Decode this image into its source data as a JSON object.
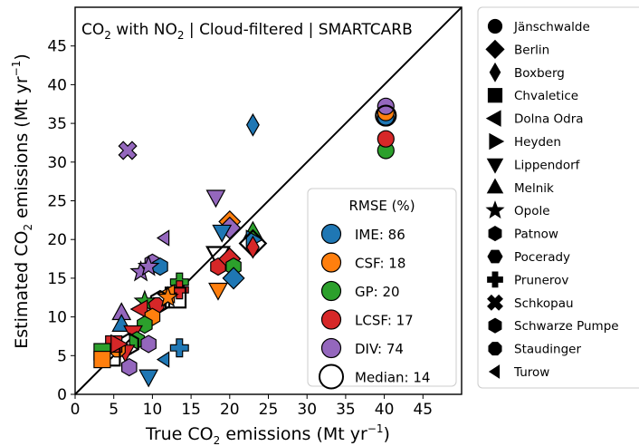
{
  "chart_data": {
    "type": "scatter",
    "title_text": "CO",
    "title_sub": "2",
    "title_mid": " with NO",
    "title_sub2": "2",
    "title_rest": " | Cloud-filtered | SMARTCARB",
    "xlabel_main": "True CO",
    "xlabel_sub": "2",
    "xlabel_rest": " emissions (Mt yr",
    "xlabel_sup": "−1",
    "xlabel_end": ")",
    "ylabel_main": "Estimated CO",
    "ylabel_sub": "2",
    "ylabel_rest": " emissions (Mt yr",
    "ylabel_sup": "−1",
    "ylabel_end": ")",
    "xlim": [
      0,
      50
    ],
    "ylim": [
      0,
      50
    ],
    "xticks": [
      "0",
      "5",
      "10",
      "15",
      "20",
      "25",
      "30",
      "35",
      "40",
      "45"
    ],
    "yticks": [
      "0",
      "5",
      "10",
      "15",
      "20",
      "25",
      "30",
      "35",
      "40",
      "45"
    ],
    "one_to_one_line": true,
    "method_legend_title": "RMSE (%)",
    "methods": [
      {
        "name": "IME: 86",
        "color": "#1f77b4"
      },
      {
        "name": "CSF: 18",
        "color": "#ff7f0e"
      },
      {
        "name": "GP: 20",
        "color": "#2ca02c"
      },
      {
        "name": "LCSF: 17",
        "color": "#d62728"
      },
      {
        "name": "DIV: 74",
        "color": "#9467bd"
      },
      {
        "name": "Median: 14",
        "color": "#ffffff"
      }
    ],
    "plants": [
      {
        "name": "Jänschwalde",
        "marker": "circle"
      },
      {
        "name": "Berlin",
        "marker": "diamond"
      },
      {
        "name": "Boxberg",
        "marker": "thin_diamond"
      },
      {
        "name": "Chvaletice",
        "marker": "square"
      },
      {
        "name": "Dolna Odra",
        "marker": "triangle_left"
      },
      {
        "name": "Heyden",
        "marker": "triangle_right"
      },
      {
        "name": "Lippendorf",
        "marker": "triangle_down"
      },
      {
        "name": "Melnik",
        "marker": "triangle_up"
      },
      {
        "name": "Opole",
        "marker": "star"
      },
      {
        "name": "Patnow",
        "marker": "hexagon"
      },
      {
        "name": "Pocerady",
        "marker": "hexagon2"
      },
      {
        "name": "Prunerov",
        "marker": "plus"
      },
      {
        "name": "Schkopau",
        "marker": "x"
      },
      {
        "name": "Schwarze Pumpe",
        "marker": "hexagon"
      },
      {
        "name": "Staudinger",
        "marker": "octagon"
      },
      {
        "name": "Turow",
        "marker": "caret_left"
      }
    ],
    "points": [
      {
        "x": 40.2,
        "y": 31.5,
        "m": "circle",
        "c": 2
      },
      {
        "x": 40.2,
        "y": 33.0,
        "m": "circle",
        "c": 3
      },
      {
        "x": 40.2,
        "y": 35.8,
        "m": "circle",
        "c": 0
      },
      {
        "x": 40.2,
        "y": 36.4,
        "m": "circle",
        "c": 1
      },
      {
        "x": 40.2,
        "y": 37.2,
        "m": "circle",
        "c": 4
      },
      {
        "x": 40.2,
        "y": 36.0,
        "m": "circle",
        "c": 5
      },
      {
        "x": 23.0,
        "y": 34.8,
        "m": "thin_diamond",
        "c": 0
      },
      {
        "x": 6.8,
        "y": 31.5,
        "m": "x",
        "c": 4
      },
      {
        "x": 18.2,
        "y": 25.5,
        "m": "triangle_down",
        "c": 4
      },
      {
        "x": 20.0,
        "y": 22.3,
        "m": "diamond",
        "c": 1
      },
      {
        "x": 20.0,
        "y": 21.5,
        "m": "diamond",
        "c": 4
      },
      {
        "x": 19.0,
        "y": 21.0,
        "m": "triangle_down",
        "c": 0
      },
      {
        "x": 11.5,
        "y": 20.2,
        "m": "caret_left",
        "c": 4
      },
      {
        "x": 23.0,
        "y": 21.0,
        "m": "triangle_up",
        "c": 2
      },
      {
        "x": 23.0,
        "y": 20.0,
        "m": "triangle_right",
        "c": 0
      },
      {
        "x": 23.0,
        "y": 19.5,
        "m": "diamond",
        "c": 5
      },
      {
        "x": 23.0,
        "y": 19.0,
        "m": "thin_diamond",
        "c": 3
      },
      {
        "x": 18.5,
        "y": 18.0,
        "m": "triangle_down",
        "c": 5
      },
      {
        "x": 18.5,
        "y": 16.5,
        "m": "hexagon",
        "c": 3
      },
      {
        "x": 20.0,
        "y": 17.5,
        "m": "diamond",
        "c": 3
      },
      {
        "x": 20.5,
        "y": 16.5,
        "m": "hexagon",
        "c": 2
      },
      {
        "x": 20.5,
        "y": 15.0,
        "m": "diamond",
        "c": 0
      },
      {
        "x": 18.5,
        "y": 13.5,
        "m": "triangle_down",
        "c": 1
      },
      {
        "x": 10.0,
        "y": 17.0,
        "m": "hexagon",
        "c": 4
      },
      {
        "x": 11.0,
        "y": 16.5,
        "m": "hexagon",
        "c": 0
      },
      {
        "x": 8.5,
        "y": 15.8,
        "m": "star",
        "c": 4
      },
      {
        "x": 9.5,
        "y": 16.5,
        "m": "star",
        "c": 4
      },
      {
        "x": 13.5,
        "y": 14.5,
        "m": "plus",
        "c": 2
      },
      {
        "x": 13.5,
        "y": 13.5,
        "m": "plus",
        "c": 3
      },
      {
        "x": 13.0,
        "y": 12.5,
        "m": "square",
        "c": 5
      },
      {
        "x": 12.0,
        "y": 13.0,
        "m": "triangle_left",
        "c": 1
      },
      {
        "x": 11.0,
        "y": 12.0,
        "m": "hexagon",
        "c": 5
      },
      {
        "x": 10.5,
        "y": 11.5,
        "m": "octagon",
        "c": 3
      },
      {
        "x": 9.0,
        "y": 12.0,
        "m": "star",
        "c": 2
      },
      {
        "x": 8.5,
        "y": 11.0,
        "m": "triangle_left",
        "c": 3
      },
      {
        "x": 10.0,
        "y": 10.0,
        "m": "hexagon",
        "c": 1
      },
      {
        "x": 9.0,
        "y": 9.0,
        "m": "hexagon",
        "c": 2
      },
      {
        "x": 6.0,
        "y": 10.5,
        "m": "triangle_up",
        "c": 4
      },
      {
        "x": 6.0,
        "y": 9.0,
        "m": "triangle_up",
        "c": 0
      },
      {
        "x": 7.5,
        "y": 8.0,
        "m": "triangle_down",
        "c": 3
      },
      {
        "x": 8.0,
        "y": 7.0,
        "m": "hexagon",
        "c": 2
      },
      {
        "x": 9.5,
        "y": 6.5,
        "m": "hexagon",
        "c": 4
      },
      {
        "x": 7.0,
        "y": 6.5,
        "m": "hexagon",
        "c": 5
      },
      {
        "x": 6.5,
        "y": 5.5,
        "m": "triangle_down",
        "c": 3
      },
      {
        "x": 5.5,
        "y": 5.8,
        "m": "octagon",
        "c": 1
      },
      {
        "x": 5.0,
        "y": 6.5,
        "m": "square",
        "c": 3
      },
      {
        "x": 4.5,
        "y": 5.0,
        "m": "square",
        "c": 5
      },
      {
        "x": 3.5,
        "y": 5.5,
        "m": "square",
        "c": 2
      },
      {
        "x": 3.5,
        "y": 4.5,
        "m": "square",
        "c": 1
      },
      {
        "x": 7.0,
        "y": 3.5,
        "m": "hexagon",
        "c": 4
      },
      {
        "x": 9.5,
        "y": 2.3,
        "m": "triangle_down",
        "c": 0
      },
      {
        "x": 11.5,
        "y": 4.5,
        "m": "caret_left",
        "c": 0
      },
      {
        "x": 13.5,
        "y": 6.0,
        "m": "plus",
        "c": 0
      },
      {
        "x": 5.5,
        "y": 6.5,
        "m": "triangle_right",
        "c": 3
      },
      {
        "x": 12.0,
        "y": 12.5,
        "m": "star",
        "c": 1
      }
    ]
  }
}
